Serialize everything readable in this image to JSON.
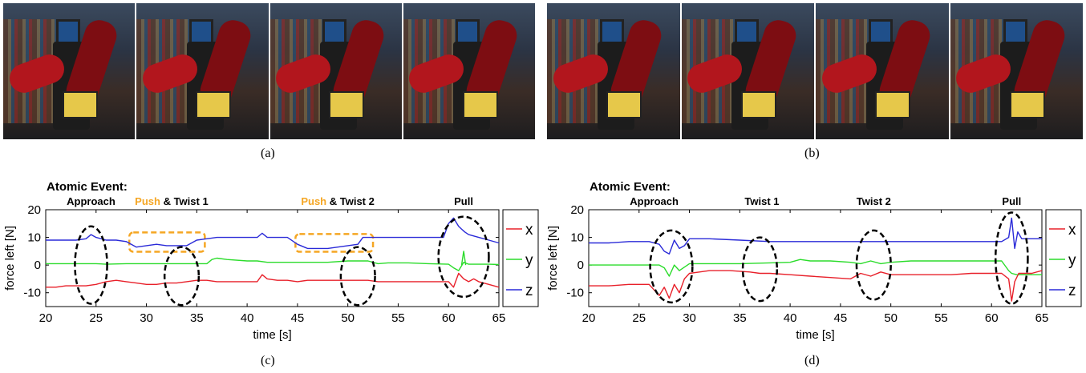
{
  "captions": {
    "a": "(a)",
    "b": "(b)",
    "c": "(c)",
    "d": "(d)"
  },
  "photos": {
    "a": [
      "frame-1",
      "frame-2",
      "frame-3",
      "frame-4"
    ],
    "b": [
      "frame-1",
      "frame-2",
      "frame-3",
      "frame-4"
    ]
  },
  "colors": {
    "x": "#e8202a",
    "y": "#2bdc2b",
    "z": "#2a2ad8",
    "highlight": "#f5a623",
    "ellipse": "#000000"
  },
  "chart_data": [
    {
      "type": "line",
      "panel": "c",
      "header": "Atomic Event:",
      "events": [
        {
          "x": 24.5,
          "parts": [
            {
              "text": "Approach",
              "color": "#000000"
            }
          ]
        },
        {
          "x": 32.5,
          "parts": [
            {
              "text": "Push",
              "color": "#f5a623"
            },
            {
              "text": " & Twist 1",
              "color": "#000000"
            }
          ]
        },
        {
          "x": 49,
          "parts": [
            {
              "text": "Push",
              "color": "#f5a623"
            },
            {
              "text": " & Twist 2",
              "color": "#000000"
            }
          ]
        },
        {
          "x": 61.5,
          "parts": [
            {
              "text": "Pull",
              "color": "#000000"
            }
          ]
        }
      ],
      "xlabel": "time [s]",
      "ylabel": "force left [N]",
      "xlim": [
        20,
        65
      ],
      "ylim": [
        -15,
        20
      ],
      "xticks": [
        20,
        25,
        30,
        35,
        40,
        45,
        50,
        55,
        60,
        65
      ],
      "yticks": [
        -10,
        0,
        10,
        20
      ],
      "legend": [
        "x",
        "y",
        "z"
      ],
      "series": [
        {
          "name": "z",
          "x": [
            20,
            22,
            23,
            24,
            24.5,
            25,
            26,
            27,
            28,
            29,
            30,
            31,
            32,
            33,
            34,
            35,
            36,
            37,
            38,
            39,
            40,
            41,
            41.5,
            42,
            43,
            44,
            45,
            46,
            47,
            48,
            49,
            50,
            51,
            51.5,
            52,
            53,
            54,
            55,
            56,
            57,
            58,
            59,
            59.5,
            60,
            60.5,
            61,
            61.3,
            61.6,
            62,
            63,
            64,
            65
          ],
          "y": [
            9,
            9,
            9,
            9.5,
            11,
            10,
            9,
            9,
            8.5,
            6.5,
            7,
            7.5,
            7,
            7,
            7,
            9,
            9.5,
            10,
            10,
            10,
            10,
            10,
            11.5,
            10,
            10,
            10,
            7.5,
            6,
            6,
            6,
            6.5,
            7,
            7.5,
            10,
            10,
            10,
            10,
            10,
            10,
            10,
            10,
            10,
            10,
            15,
            17,
            14,
            13,
            12,
            11,
            10,
            9,
            8
          ]
        },
        {
          "name": "y",
          "x": [
            20,
            22,
            24,
            25,
            26,
            28,
            30,
            32,
            34,
            36,
            36.5,
            37,
            38,
            40,
            41,
            42,
            44,
            46,
            48,
            50,
            52,
            53,
            54,
            55,
            56,
            58,
            60,
            60.5,
            61,
            61.5,
            62,
            63,
            64,
            65
          ],
          "y": [
            0.5,
            0.5,
            0.5,
            0.5,
            0.3,
            0.5,
            0.5,
            0.5,
            0.5,
            0.5,
            2,
            2.5,
            2,
            1.5,
            1.5,
            1,
            1,
            1,
            1,
            1.5,
            1.5,
            0.5,
            0.8,
            0.8,
            0.8,
            0.5,
            0.3,
            -1,
            -2,
            1,
            0.3,
            0.3,
            0.3,
            0.2
          ]
        },
        {
          "name": "y_spike",
          "x": [
            61.3,
            61.5,
            61.7
          ],
          "y": [
            0,
            5,
            0
          ]
        },
        {
          "name": "x",
          "x": [
            20,
            21,
            22,
            23,
            24,
            25,
            26,
            27,
            28,
            29,
            30,
            31,
            32,
            33,
            34,
            35,
            36,
            37,
            38,
            39,
            40,
            41,
            41.5,
            42,
            43,
            44,
            45,
            46,
            47,
            48,
            49,
            50,
            51,
            52,
            53,
            54,
            55,
            56,
            57,
            58,
            59,
            60,
            60.5,
            61,
            61.5,
            62,
            62.5,
            63,
            64,
            65
          ],
          "y": [
            -8,
            -8,
            -7.5,
            -7.5,
            -7.5,
            -7,
            -6,
            -5.5,
            -6,
            -6.5,
            -7,
            -7,
            -6.5,
            -6.5,
            -6,
            -5.5,
            -5.5,
            -6,
            -6,
            -6,
            -6,
            -6,
            -3.5,
            -5,
            -5.5,
            -5.5,
            -6,
            -5.5,
            -5.5,
            -5.5,
            -5.5,
            -5.5,
            -5.5,
            -5.5,
            -6,
            -6,
            -6,
            -6,
            -6,
            -6,
            -6,
            -6,
            -8,
            -3,
            -5,
            -6,
            -5,
            -6,
            -7,
            -8
          ]
        }
      ],
      "ellipses": [
        {
          "cx": 24.5,
          "cy": 0,
          "rx": 1.6,
          "ry": 14
        },
        {
          "cx": 33.5,
          "cy": -4,
          "rx": 1.7,
          "ry": 10.5
        },
        {
          "cx": 51,
          "cy": -4,
          "rx": 1.7,
          "ry": 10.5
        },
        {
          "cx": 61.5,
          "cy": 3,
          "rx": 2.5,
          "ry": 14.5
        }
      ],
      "boxes": [
        {
          "x0": 28.3,
          "x1": 35.8,
          "y0": 4.8,
          "y1": 11.8
        },
        {
          "x0": 44.8,
          "x1": 52.5,
          "y0": 4.8,
          "y1": 11.2
        }
      ]
    },
    {
      "type": "line",
      "panel": "d",
      "header": "Atomic Event:",
      "events": [
        {
          "x": 26.5,
          "parts": [
            {
              "text": "Approach",
              "color": "#000000"
            }
          ]
        },
        {
          "x": 37.2,
          "parts": [
            {
              "text": "Twist 1",
              "color": "#000000"
            }
          ]
        },
        {
          "x": 48.3,
          "parts": [
            {
              "text": "Twist 2",
              "color": "#000000"
            }
          ]
        },
        {
          "x": 62,
          "parts": [
            {
              "text": "Pull",
              "color": "#000000"
            }
          ]
        }
      ],
      "xlabel": "time [s]",
      "ylabel": "force left [N]",
      "xlim": [
        20,
        65
      ],
      "ylim": [
        -15,
        20
      ],
      "xticks": [
        20,
        25,
        30,
        35,
        40,
        45,
        50,
        55,
        60,
        65
      ],
      "yticks": [
        -10,
        0,
        10,
        20
      ],
      "legend": [
        "x",
        "y",
        "z"
      ],
      "series": [
        {
          "name": "z",
          "x": [
            20,
            22,
            24,
            26,
            27,
            27.5,
            28,
            28.5,
            29,
            29.5,
            30,
            31,
            32,
            35,
            38,
            40,
            42,
            44,
            46,
            48,
            50,
            52,
            54,
            56,
            58,
            60,
            61,
            61.7,
            62,
            62.3,
            62.6,
            63,
            64,
            65
          ],
          "y": [
            8,
            8,
            8.5,
            8.5,
            7.5,
            5,
            4,
            9,
            6,
            7,
            9.5,
            9.5,
            9.5,
            9,
            8.5,
            8.5,
            8.5,
            8.5,
            8.5,
            8.5,
            8.5,
            8.5,
            8.5,
            8.5,
            8.5,
            8.5,
            8.5,
            10,
            17,
            6,
            12,
            9.5,
            9.5,
            9.5
          ]
        },
        {
          "name": "y",
          "x": [
            20,
            22,
            24,
            26,
            27,
            27.5,
            28,
            28.5,
            29,
            30,
            31,
            32,
            35,
            38,
            40,
            41,
            42,
            44,
            46,
            47,
            48,
            49,
            50,
            52,
            54,
            56,
            58,
            60,
            61,
            61.7,
            62,
            62.5,
            63,
            64,
            65
          ],
          "y": [
            0,
            0,
            0,
            0,
            0,
            -1,
            -4,
            0,
            -2,
            0.5,
            0.5,
            0.5,
            0.5,
            0.8,
            1,
            2,
            1.5,
            1.5,
            1,
            0.5,
            1.5,
            0.5,
            1,
            1.5,
            1.5,
            1.5,
            1.5,
            1.5,
            1.5,
            -2,
            -3,
            -3.5,
            -3.5,
            -3.5,
            -3.5
          ]
        },
        {
          "name": "x",
          "x": [
            20,
            22,
            24,
            26,
            26.5,
            27,
            27.5,
            28,
            28.5,
            29,
            29.5,
            30,
            31,
            32,
            34,
            36,
            37,
            38,
            40,
            42,
            44,
            46,
            47,
            48,
            49,
            50,
            52,
            54,
            56,
            58,
            60,
            61,
            61.7,
            62,
            62.3,
            62.7,
            63,
            64,
            65
          ],
          "y": [
            -7.5,
            -7.5,
            -7,
            -7,
            -9,
            -11,
            -8,
            -12,
            -7,
            -10,
            -5,
            -3,
            -2.5,
            -2,
            -2,
            -2.5,
            -3,
            -3,
            -3.5,
            -4,
            -4.5,
            -5,
            -3,
            -4,
            -2.5,
            -3.5,
            -3.5,
            -3.5,
            -3.5,
            -3,
            -3,
            -3,
            -5,
            -13,
            -6,
            -3,
            -3,
            -3,
            -2
          ]
        }
      ],
      "ellipses": [
        {
          "cx": 28.2,
          "cy": -0.5,
          "rx": 2.1,
          "ry": 13
        },
        {
          "cx": 37,
          "cy": -1.5,
          "rx": 1.7,
          "ry": 11.5
        },
        {
          "cx": 48.3,
          "cy": 0,
          "rx": 1.7,
          "ry": 12.5
        },
        {
          "cx": 62,
          "cy": 2.5,
          "rx": 1.6,
          "ry": 16.5
        }
      ],
      "boxes": []
    }
  ]
}
